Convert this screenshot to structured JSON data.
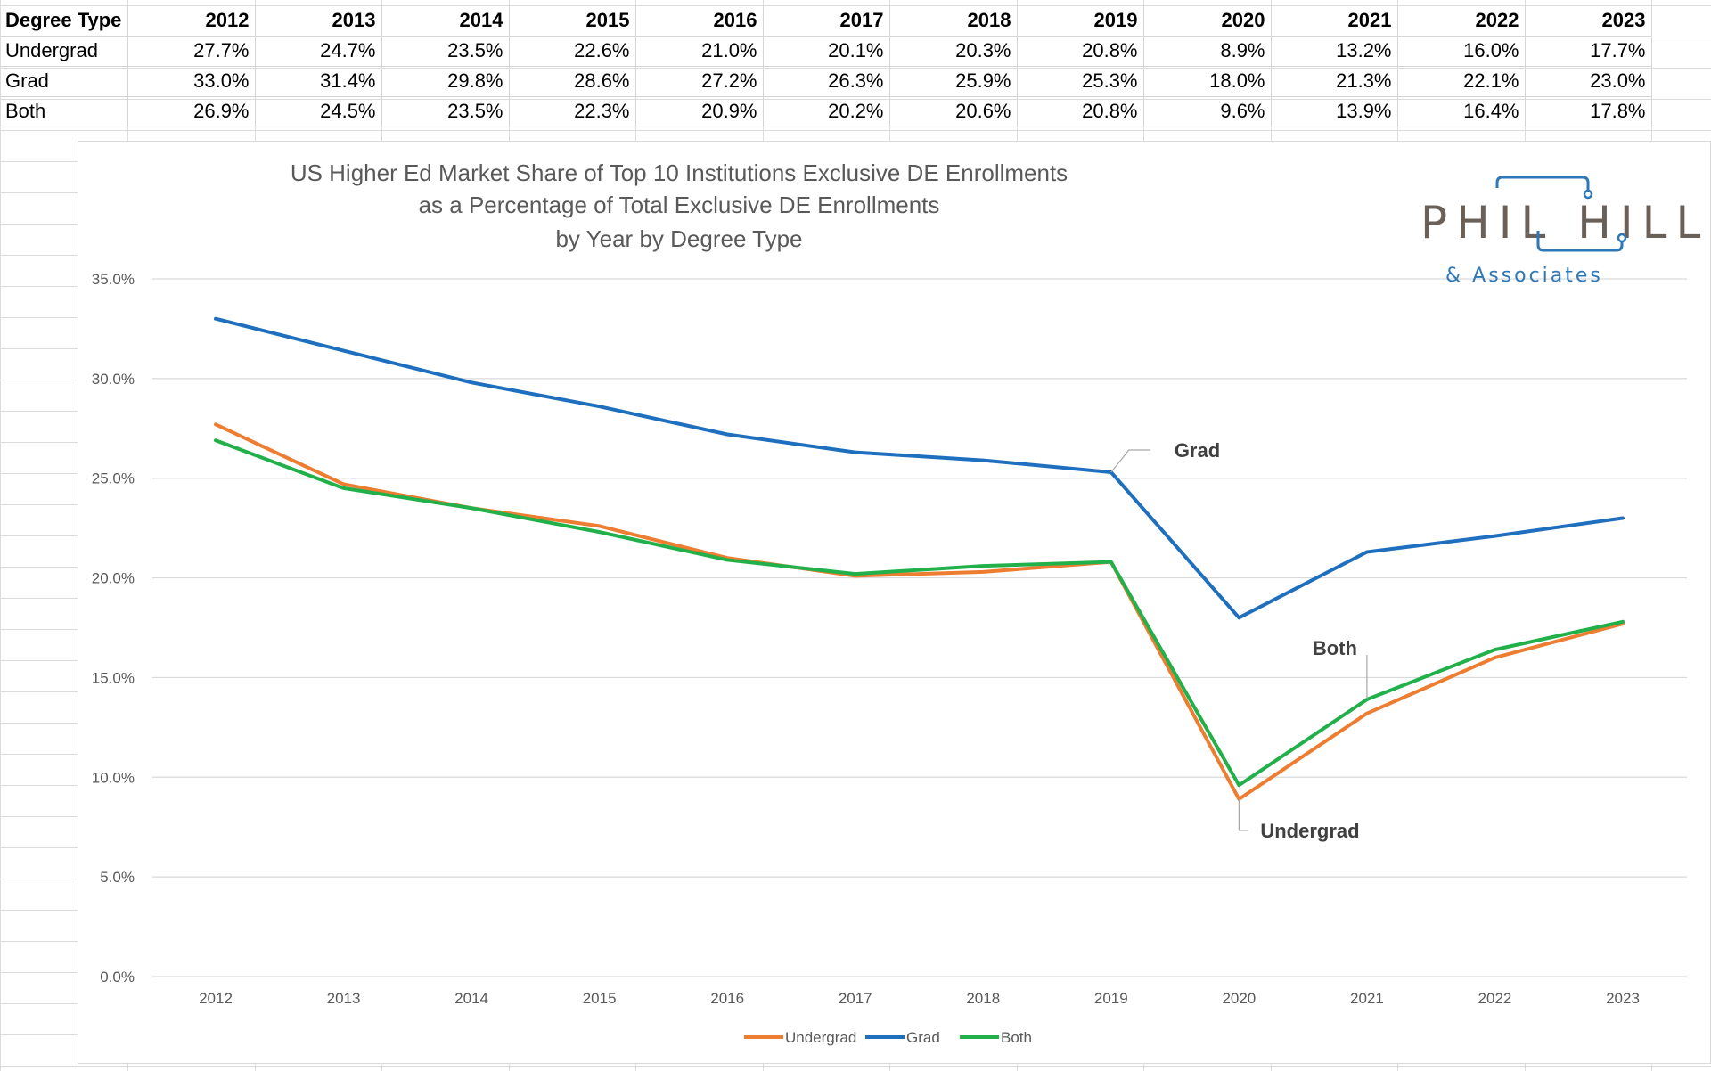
{
  "table": {
    "header": [
      "Degree Type",
      "2012",
      "2013",
      "2014",
      "2015",
      "2016",
      "2017",
      "2018",
      "2019",
      "2020",
      "2021",
      "2022",
      "2023"
    ],
    "rows": [
      {
        "label": "Undergrad",
        "values": [
          "27.7%",
          "24.7%",
          "23.5%",
          "22.6%",
          "21.0%",
          "20.1%",
          "20.3%",
          "20.8%",
          "8.9%",
          "13.2%",
          "16.0%",
          "17.7%"
        ]
      },
      {
        "label": "Grad",
        "values": [
          "33.0%",
          "31.4%",
          "29.8%",
          "28.6%",
          "27.2%",
          "26.3%",
          "25.9%",
          "25.3%",
          "18.0%",
          "21.3%",
          "22.1%",
          "23.0%"
        ]
      },
      {
        "label": "Both",
        "values": [
          "26.9%",
          "24.5%",
          "23.5%",
          "22.3%",
          "20.9%",
          "20.2%",
          "20.6%",
          "20.8%",
          "9.6%",
          "13.9%",
          "16.4%",
          "17.8%"
        ]
      }
    ]
  },
  "chart_data": {
    "type": "line",
    "title_lines": [
      "US Higher Ed Market Share of Top 10 Institutions Exclusive DE Enrollments",
      "as a Percentage of Total Exclusive DE Enrollments",
      "by Year by Degree Type"
    ],
    "xlabel": "",
    "ylabel": "",
    "categories": [
      "2012",
      "2013",
      "2014",
      "2015",
      "2016",
      "2017",
      "2018",
      "2019",
      "2020",
      "2021",
      "2022",
      "2023"
    ],
    "y_ticks": [
      "0.0%",
      "5.0%",
      "10.0%",
      "15.0%",
      "20.0%",
      "25.0%",
      "30.0%",
      "35.0%"
    ],
    "ylim": [
      0,
      35
    ],
    "grid": true,
    "legend_position": "bottom",
    "series": [
      {
        "name": "Undergrad",
        "color": "#ed7d31",
        "values": [
          27.7,
          24.7,
          23.5,
          22.6,
          21.0,
          20.1,
          20.3,
          20.8,
          8.9,
          13.2,
          16.0,
          17.7
        ]
      },
      {
        "name": "Grad",
        "color": "#1f6fbf",
        "values": [
          33.0,
          31.4,
          29.8,
          28.6,
          27.2,
          26.3,
          25.9,
          25.3,
          18.0,
          21.3,
          22.1,
          23.0
        ]
      },
      {
        "name": "Both",
        "color": "#22b04b",
        "values": [
          26.9,
          24.5,
          23.5,
          22.3,
          20.9,
          20.2,
          20.6,
          20.8,
          9.6,
          13.9,
          16.4,
          17.8
        ]
      }
    ],
    "annotations": [
      {
        "text": "Grad",
        "series": "Grad",
        "category": "2019"
      },
      {
        "text": "Both",
        "series": "Both",
        "category": "2021"
      },
      {
        "text": "Undergrad",
        "series": "Undergrad",
        "category": "2020"
      }
    ]
  },
  "logo": {
    "main": "PHIL HILL",
    "sub": "& Associates",
    "main_color": "#6b6058",
    "accent_color": "#2f78b7"
  }
}
